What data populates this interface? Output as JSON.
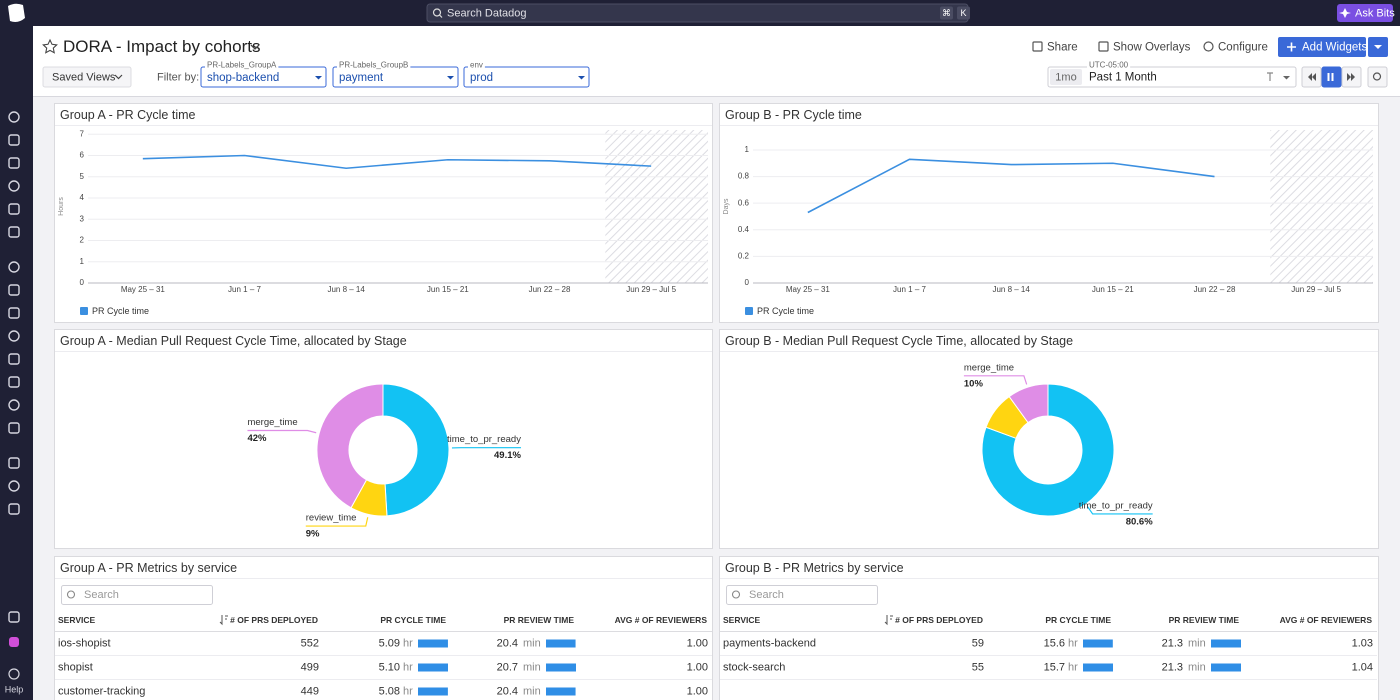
{
  "topbar": {
    "search": "Search Datadog",
    "shortcut": [
      "⌘",
      "K"
    ],
    "ask_bits": "Ask Bits"
  },
  "sidebar": {
    "help": "Help"
  },
  "header": {
    "title": "DORA - Impact by cohorts",
    "actions": [
      "Share",
      "Show Overlays",
      "Configure",
      "Add Widgets"
    ]
  },
  "filters": {
    "saved_views": "Saved Views",
    "filter_by": "Filter by:",
    "variables": [
      {
        "name": "PR-Labels_GroupA",
        "value": "shop-backend"
      },
      {
        "name": "PR-Labels_GroupB",
        "value": "payment"
      },
      {
        "name": "env",
        "value": "prod"
      }
    ]
  },
  "timeframe": {
    "timezone": "UTC-05:00",
    "short": "1mo",
    "label": "Past 1 Month"
  },
  "chart_data": [
    {
      "type": "line",
      "title": "Group A - PR Cycle time",
      "y_label": "Hours",
      "categories": [
        "May 25 – 31",
        "Jun 1 – 7",
        "Jun 8 – 14",
        "Jun 15 – 21",
        "Jun 22 – 28",
        "Jun 29 – Jul 5"
      ],
      "series": [
        {
          "name": "PR Cycle time",
          "color": "#3b8fe0",
          "values": [
            5.85,
            6.0,
            5.4,
            5.8,
            5.75,
            5.5
          ]
        }
      ],
      "ylim": [
        0,
        7.2
      ],
      "yticks": [
        0,
        1,
        2,
        3,
        4,
        5,
        6,
        7
      ],
      "grid": true
    },
    {
      "type": "line",
      "title": "Group B - PR Cycle time",
      "y_label": "Days",
      "categories": [
        "May 25 – 31",
        "Jun 1 – 7",
        "Jun 8 – 14",
        "Jun 15 – 21",
        "Jun 22 – 28",
        "Jun 29 – Jul 5"
      ],
      "series": [
        {
          "name": "PR Cycle time",
          "color": "#3b8fe0",
          "values": [
            0.53,
            0.93,
            0.89,
            0.9,
            0.8,
            null
          ]
        }
      ],
      "ylim": [
        0,
        1.15
      ],
      "yticks": [
        0,
        0.2,
        0.4,
        0.6,
        0.8,
        1
      ],
      "grid": true
    },
    {
      "type": "donut",
      "title": "Group A - Median Pull Request Cycle Time, allocated by Stage",
      "categories": [
        "time_to_pr_ready",
        "review_time",
        "merge_time"
      ],
      "values": [
        49.1,
        9,
        42
      ],
      "value_labels": [
        "49.1%",
        "9%",
        "42%"
      ],
      "colors": [
        "#12c2f3",
        "#ffd511",
        "#df8de6"
      ]
    },
    {
      "type": "donut",
      "title": "Group B - Median Pull Request Cycle Time, allocated by Stage",
      "categories": [
        "time_to_pr_ready",
        null,
        "merge_time"
      ],
      "values": [
        80.6,
        9.4,
        10
      ],
      "value_labels": [
        "80.6%",
        null,
        "10%"
      ],
      "colors": [
        "#12c2f3",
        "#ffd511",
        "#df8de6"
      ]
    }
  ],
  "tables": [
    {
      "title": "Group A - PR Metrics by service",
      "search_placeholder": "Search",
      "columns": [
        "SERVICE",
        "# OF PRS DEPLOYED",
        "PR CYCLE TIME",
        "PR REVIEW TIME",
        "AVG # OF REVIEWERS"
      ],
      "rows": [
        [
          "ios-shopist",
          "552",
          {
            "value": "5.09",
            "unit": "hr"
          },
          {
            "value": "20.4",
            "unit": "min"
          },
          "1.00"
        ],
        [
          "shopist",
          "499",
          {
            "value": "5.10",
            "unit": "hr"
          },
          {
            "value": "20.7",
            "unit": "min"
          },
          "1.00"
        ],
        [
          "customer-tracking",
          "449",
          {
            "value": "5.08",
            "unit": "hr"
          },
          {
            "value": "20.4",
            "unit": "min"
          },
          "1.00"
        ]
      ]
    },
    {
      "title": "Group B - PR Metrics by service",
      "search_placeholder": "Search",
      "columns": [
        "SERVICE",
        "# OF PRS DEPLOYED",
        "PR CYCLE TIME",
        "PR REVIEW TIME",
        "AVG # OF REVIEWERS"
      ],
      "rows": [
        [
          "payments-backend",
          "59",
          {
            "value": "15.6",
            "unit": "hr"
          },
          {
            "value": "21.3",
            "unit": "min"
          },
          "1.03"
        ],
        [
          "stock-search",
          "55",
          {
            "value": "15.7",
            "unit": "hr"
          },
          {
            "value": "21.3",
            "unit": "min"
          },
          "1.04"
        ]
      ]
    }
  ]
}
